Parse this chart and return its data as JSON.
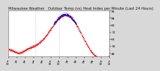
{
  "title": "Milwaukee Weather   Outdoor Temp (vs) Heat Index per Minute (Last 24 Hours)",
  "background_color": "#d8d8d8",
  "plot_bg": "#ffffff",
  "line_color_temp": "#ff0000",
  "line_color_heat": "#0000cc",
  "ylim": [
    44,
    96
  ],
  "ytick_values": [
    96,
    88,
    80,
    72,
    64,
    56,
    48
  ],
  "ytick_labels": [
    "96",
    "88",
    "80",
    "72",
    "64",
    "56",
    "48"
  ],
  "vline_positions": [
    0.27,
    0.5
  ],
  "vline_color": "#aaaaaa",
  "n_points": 1440,
  "title_fontsize": 3.8,
  "tick_fontsize": 3.2,
  "linewidth": 0.5,
  "markersize": 0.8
}
